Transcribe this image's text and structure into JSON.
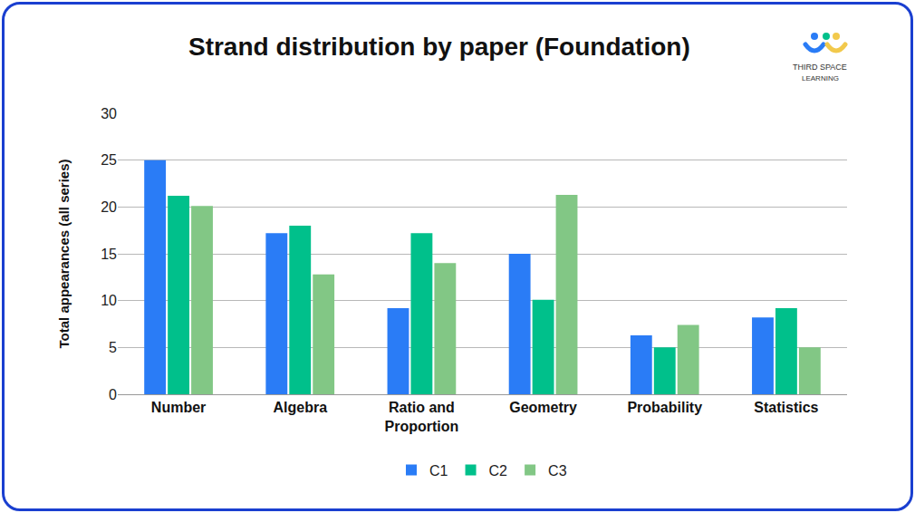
{
  "chart_data": {
    "type": "bar",
    "title": "Strand distribution by paper (Foundation)",
    "y_label": "Total appearances (all series)",
    "categories": [
      "Number",
      "Algebra",
      "Ratio and Proportion",
      "Geometry",
      "Probability",
      "Statistics"
    ],
    "series": [
      {
        "name": "C1",
        "color": "#2a7cf6",
        "values": [
          25,
          17.2,
          9.2,
          15,
          6.3,
          8.2
        ]
      },
      {
        "name": "C2",
        "color": "#00c08b",
        "values": [
          21.2,
          18,
          17.2,
          10.1,
          5,
          9.2
        ]
      },
      {
        "name": "C3",
        "color": "#82c785",
        "values": [
          20.1,
          12.8,
          14,
          21.3,
          7.4,
          5
        ]
      }
    ],
    "ylim": [
      0,
      30
    ],
    "yticks": [
      0,
      5,
      10,
      15,
      20,
      25,
      30
    ],
    "grid": true,
    "legend": "bottom",
    "annotations": [
      "THIRD SPACE",
      "LEARNING"
    ]
  }
}
